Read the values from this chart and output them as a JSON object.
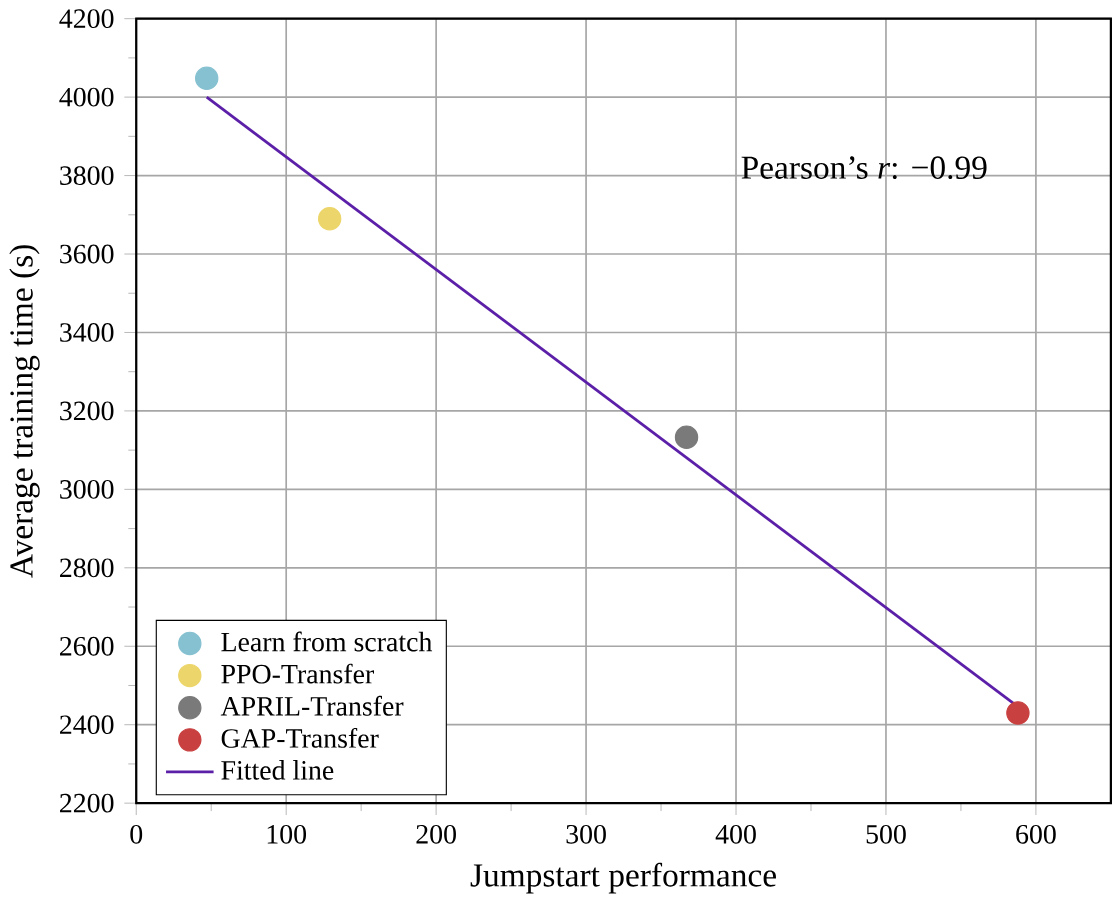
{
  "chart_data": {
    "type": "scatter",
    "xlabel": "Jumpstart performance",
    "ylabel": "Average  training  time (s)",
    "xlim": [
      0,
      650
    ],
    "xticks": [
      0,
      100,
      200,
      300,
      400,
      500,
      600
    ],
    "ylim": [
      2200,
      4200
    ],
    "yticks": [
      2200,
      2400,
      2600,
      2800,
      3000,
      3200,
      3400,
      3600,
      3800,
      4000,
      4200
    ],
    "grid": true,
    "legend": "bottom left",
    "annotations": [
      "Pearson’s *r*: −0.99"
    ],
    "series": [
      {
        "name": "Learn from scratch",
        "marker": "circle",
        "color": "#86c1d1",
        "x": [
          47
        ],
        "values": [
          4048
        ]
      },
      {
        "name": "PPO-Transfer",
        "marker": "circle",
        "color": "#ecd56a",
        "x": [
          129
        ],
        "values": [
          3690
        ]
      },
      {
        "name": "APRIL-Transfer",
        "marker": "circle",
        "color": "#7a7a7a",
        "x": [
          367
        ],
        "values": [
          3133
        ]
      },
      {
        "name": "GAP-Transfer",
        "marker": "circle",
        "color": "#c94040",
        "x": [
          588
        ],
        "values": [
          2430
        ]
      },
      {
        "name": "Fitted line",
        "type": "line",
        "color": "#5b1fa8",
        "x": [
          47,
          590
        ],
        "values": [
          4000,
          2440
        ]
      }
    ]
  }
}
